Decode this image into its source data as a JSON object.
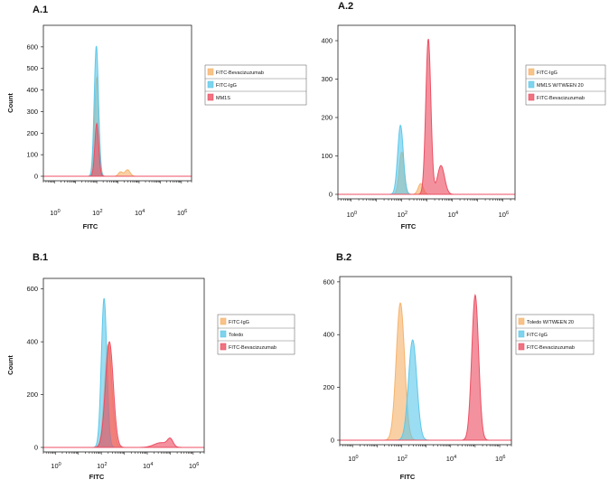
{
  "colors": {
    "orange": "#f6b36c",
    "blue": "#5ec8ea",
    "red": "#ec4f63",
    "grey": "#9a9a9a"
  },
  "chart_data": [
    {
      "type": "area",
      "panel_label": "A.1",
      "xlabel": "FITC",
      "ylabel": "Count",
      "xscale": "log",
      "xlim": [
        0.3,
        3000000
      ],
      "ylim": [
        0,
        700
      ],
      "yticks": [
        0,
        100,
        200,
        300,
        400,
        500,
        600
      ],
      "xtick_exponents": [
        0,
        2,
        4,
        6
      ],
      "legend_position": "right",
      "legend": [
        "FITC-Bevacizuzumab",
        "FITC-IgG",
        "MM1S"
      ],
      "series": [
        {
          "name": "FITC-Bevacizuzumab",
          "color": "orange",
          "peaks": [
            {
              "center_log10": 2.0,
              "height": 460,
              "width": 0.1,
              "skew": 1.0
            },
            {
              "center_log10": 3.12,
              "height": 20,
              "width": 0.1
            },
            {
              "center_log10": 3.45,
              "height": 30,
              "width": 0.12
            }
          ]
        },
        {
          "name": "FITC-IgG",
          "color": "blue",
          "peaks": [
            {
              "center_log10": 1.98,
              "height": 605,
              "width": 0.1,
              "skew": 1.0
            }
          ]
        },
        {
          "name": "MM1S",
          "color": "red",
          "peaks": [
            {
              "center_log10": 2.0,
              "height": 245,
              "width": 0.09
            }
          ]
        }
      ]
    },
    {
      "type": "area",
      "panel_label": "A.2",
      "xlabel": "FITC",
      "ylabel": "",
      "xscale": "log",
      "xlim": [
        0.3,
        3000000
      ],
      "ylim": [
        0,
        440
      ],
      "yticks": [
        0,
        100,
        200,
        300,
        400
      ],
      "xtick_exponents": [
        0,
        2,
        4,
        6
      ],
      "legend_position": "right",
      "legend": [
        "FITC-IgG",
        "MM1S W/TWEEN 20",
        "FITC-Bevacizuzumab"
      ],
      "series": [
        {
          "name": "FITC-IgG",
          "color": "orange",
          "peaks": [
            {
              "center_log10": 2.0,
              "height": 110,
              "width": 0.1
            },
            {
              "center_log10": 2.75,
              "height": 28,
              "width": 0.1
            }
          ]
        },
        {
          "name": "MM1S W/TWEEN 20",
          "color": "blue",
          "peaks": [
            {
              "center_log10": 1.95,
              "height": 180,
              "width": 0.11
            }
          ]
        },
        {
          "name": "FITC-Bevacizuzumab",
          "color": "red",
          "peaks": [
            {
              "center_log10": 3.05,
              "height": 405,
              "width": 0.1
            },
            {
              "center_log10": 3.55,
              "height": 75,
              "width": 0.14
            }
          ]
        }
      ]
    },
    {
      "type": "area",
      "panel_label": "B.1",
      "xlabel": "FITC",
      "ylabel": "Count",
      "xscale": "log",
      "xlim": [
        0.3,
        3000000
      ],
      "ylim": [
        0,
        640
      ],
      "yticks": [
        0,
        200,
        400,
        600
      ],
      "xtick_exponents": [
        0,
        2,
        4,
        6
      ],
      "legend_position": "right",
      "legend": [
        "FITC-IgG",
        "Toledo",
        "FITC-Bevacizuzumab"
      ],
      "series": [
        {
          "name": "FITC-IgG",
          "color": "orange",
          "peaks": [
            {
              "center_log10": 2.3,
              "height": 390,
              "width": 0.16
            }
          ]
        },
        {
          "name": "Toledo",
          "color": "blue",
          "peaks": [
            {
              "center_log10": 2.12,
              "height": 565,
              "width": 0.12
            }
          ]
        },
        {
          "name": "FITC-Bevacizuzumab",
          "color": "red",
          "peaks": [
            {
              "center_log10": 2.35,
              "height": 400,
              "width": 0.17
            },
            {
              "center_log10": 4.6,
              "height": 18,
              "width": 0.3
            },
            {
              "center_log10": 5.0,
              "height": 28,
              "width": 0.12
            }
          ]
        }
      ]
    },
    {
      "type": "area",
      "panel_label": "B.2",
      "xlabel": "FITC",
      "ylabel": "",
      "xscale": "log",
      "xlim": [
        0.3,
        3000000
      ],
      "ylim": [
        0,
        620
      ],
      "yticks": [
        0,
        200,
        400,
        600
      ],
      "xtick_exponents": [
        0,
        2,
        4,
        6
      ],
      "legend_position": "right",
      "legend": [
        "Toledo W/TWEEN 20",
        "FITC-IgG",
        "FITC-Bevacizuzumab"
      ],
      "series": [
        {
          "name": "Toledo W/TWEEN 20",
          "color": "orange",
          "peaks": [
            {
              "center_log10": 1.95,
              "height": 520,
              "width": 0.17
            }
          ]
        },
        {
          "name": "FITC-IgG",
          "color": "blue",
          "peaks": [
            {
              "center_log10": 2.45,
              "height": 380,
              "width": 0.17
            }
          ]
        },
        {
          "name": "FITC-Bevacizuzumab",
          "color": "red",
          "peaks": [
            {
              "center_log10": 5.0,
              "height": 550,
              "width": 0.14
            }
          ]
        }
      ]
    }
  ]
}
